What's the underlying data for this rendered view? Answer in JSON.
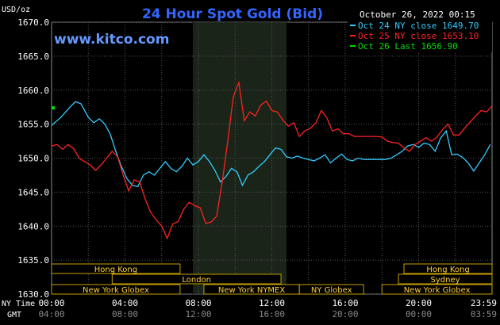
{
  "chart_data": {
    "type": "line",
    "title": "24 Hour Spot Gold (Bid)",
    "ylabel": "USD/oz",
    "date_text": "October 26, 2022 00:15",
    "source": "www.kitco.com",
    "ylim": [
      1630,
      1670
    ],
    "yticks": [
      "1670.0",
      "1665.0",
      "1660.0",
      "1655.0",
      "1650.0",
      "1645.0",
      "1640.0",
      "1635.0",
      "1630.0"
    ],
    "xlim": [
      0,
      24
    ],
    "x_row_label": "NY Time",
    "gmt_row_label": "GMT",
    "x_ticks": [
      {
        "x": 0,
        "ny": "00:00",
        "gmt": "04:00"
      },
      {
        "x": 4,
        "ny": "04:00",
        "gmt": "08:00"
      },
      {
        "x": 8,
        "ny": "08:00",
        "gmt": "12:00"
      },
      {
        "x": 12,
        "ny": "12:00",
        "gmt": "16:00"
      },
      {
        "x": 16,
        "ny": "16:00",
        "gmt": "20:00"
      },
      {
        "x": 20,
        "ny": "20:00",
        "gmt": "00:00"
      },
      {
        "x": 24,
        "ny": "23:59",
        "gmt": "03:59"
      }
    ],
    "grid": true,
    "highlight_range": [
      7.7,
      12.8
    ],
    "legend": [
      {
        "label": "Oct 24 NY close 1649.70",
        "color": "#33ccff"
      },
      {
        "label": "Oct 25 NY close 1653.10",
        "color": "#ff2222"
      },
      {
        "label": "Oct 26 Last 1656.90",
        "color": "#00dd00"
      }
    ],
    "series": [
      {
        "name": "Oct 24 NY close 1649.70",
        "color": "#33ccff",
        "x": [
          0,
          0.5,
          1,
          1.3,
          1.6,
          2,
          2.3,
          2.6,
          2.9,
          3.2,
          3.5,
          3.8,
          4.1,
          4.4,
          4.7,
          5,
          5.3,
          5.6,
          5.9,
          6.2,
          6.5,
          6.8,
          7.1,
          7.4,
          7.7,
          8,
          8.3,
          8.6,
          8.9,
          9.2,
          9.5,
          9.8,
          10.1,
          10.4,
          10.7,
          11,
          11.3,
          11.6,
          11.9,
          12.2,
          12.5,
          12.8,
          13.1,
          13.4,
          13.7,
          14,
          14.3,
          14.6,
          14.9,
          15.2,
          15.5,
          15.8,
          16.1,
          16.4,
          16.7,
          17,
          17.3,
          17.6,
          17.9,
          18.2,
          18.5,
          18.8,
          19.1,
          19.4,
          19.7,
          20,
          20.3,
          20.6,
          20.9,
          21.2,
          21.5,
          21.8,
          22.1,
          22.4,
          22.7,
          23,
          23.3,
          23.6,
          23.9
        ],
        "y": [
          1654.8,
          1656,
          1657.5,
          1658.3,
          1658,
          1656,
          1655.2,
          1655.8,
          1655,
          1653.5,
          1651,
          1648.8,
          1647,
          1646,
          1645.8,
          1647.5,
          1648,
          1647.5,
          1648.5,
          1649.5,
          1648.5,
          1648,
          1648.8,
          1650,
          1649,
          1649.5,
          1650.5,
          1649.5,
          1648.2,
          1646.5,
          1647.3,
          1648.5,
          1648,
          1646,
          1647.5,
          1648,
          1648.8,
          1649.5,
          1650.5,
          1651.5,
          1651.3,
          1650.2,
          1650,
          1650.3,
          1650,
          1649.8,
          1649.6,
          1650,
          1650.5,
          1649.3,
          1650,
          1650.6,
          1649.8,
          1649.6,
          1650,
          1649.8,
          1649.8,
          1649.8,
          1649.8,
          1649.8,
          1650,
          1650.5,
          1651,
          1651.8,
          1652,
          1651.6,
          1652.2,
          1652,
          1651,
          1653,
          1654,
          1650.5,
          1650.6,
          1650.1,
          1649.3,
          1648.1,
          1649.3,
          1650.5,
          1652
        ]
      },
      {
        "name": "Oct 25 NY close 1653.10",
        "color": "#ff2222",
        "x": [
          0,
          0.3,
          0.6,
          0.9,
          1.2,
          1.5,
          1.8,
          2.1,
          2.4,
          2.7,
          3,
          3.3,
          3.6,
          3.9,
          4.2,
          4.5,
          4.8,
          5.1,
          5.4,
          5.7,
          6,
          6.3,
          6.6,
          6.9,
          7.2,
          7.5,
          7.8,
          8.1,
          8.4,
          8.7,
          9,
          9.3,
          9.6,
          9.9,
          10.2,
          10.5,
          10.8,
          11.1,
          11.4,
          11.7,
          12,
          12.3,
          12.6,
          12.9,
          13.2,
          13.5,
          13.8,
          14.1,
          14.4,
          14.7,
          15,
          15.3,
          15.6,
          15.9,
          16.2,
          16.5,
          16.8,
          17.1,
          17.4,
          17.7,
          18,
          18.3,
          18.6,
          18.9,
          19.2,
          19.5,
          19.8,
          20.1,
          20.4,
          20.7,
          21,
          21.3,
          21.6,
          21.9,
          22.2,
          22.5,
          22.8,
          23.1,
          23.4,
          23.7,
          24
        ],
        "y": [
          1651.8,
          1652,
          1651.3,
          1652,
          1651.4,
          1650,
          1649.5,
          1649,
          1648.2,
          1649,
          1650,
          1651,
          1650.2,
          1647.5,
          1645.2,
          1646.8,
          1646.5,
          1644,
          1642,
          1640.9,
          1640,
          1638.2,
          1640.3,
          1640.7,
          1642.5,
          1643.5,
          1643,
          1642.7,
          1640.4,
          1640.6,
          1641.5,
          1646.6,
          1652.5,
          1659,
          1661.1,
          1655.5,
          1656.8,
          1656.2,
          1657.8,
          1658.4,
          1657,
          1656.8,
          1655.6,
          1654.7,
          1655.2,
          1653.2,
          1654,
          1654.4,
          1655.2,
          1657,
          1655.9,
          1654,
          1654.3,
          1653.6,
          1653.6,
          1653.2,
          1653.2,
          1653.2,
          1653.2,
          1653.2,
          1653.1,
          1652.5,
          1652.3,
          1652.2,
          1651.5,
          1651,
          1652,
          1652.5,
          1653,
          1652.5,
          1653.1,
          1654.2,
          1655,
          1653.4,
          1653.4,
          1654.4,
          1655.3,
          1656.2,
          1657,
          1656.8,
          1657.7
        ]
      },
      {
        "name": "Oct 26 Last 1656.90",
        "color": "#00dd00",
        "x": [
          0
        ],
        "y": [
          1657.4
        ]
      }
    ],
    "session_bars": [
      [
        {
          "label": "Hong Kong",
          "start": 0,
          "end": 7
        }
      ],
      [
        {
          "label": "London",
          "start": 3.3,
          "end": 12.5
        }
      ],
      [
        {
          "label": "New York Globex",
          "start": 0,
          "end": 7
        },
        {
          "label": "New York NYMEX",
          "start": 8.3,
          "end": 13.5
        },
        {
          "label": "NY Globex",
          "start": 13.5,
          "end": 17
        }
      ]
    ],
    "session_bars_right": [
      [
        {
          "label": "Hong Kong",
          "start": 19.2,
          "end": 24
        }
      ],
      [
        {
          "label": "Sydney",
          "start": 18.9,
          "end": 24
        }
      ],
      [
        {
          "label": "New York Globex",
          "start": 18,
          "end": 24
        }
      ]
    ]
  }
}
